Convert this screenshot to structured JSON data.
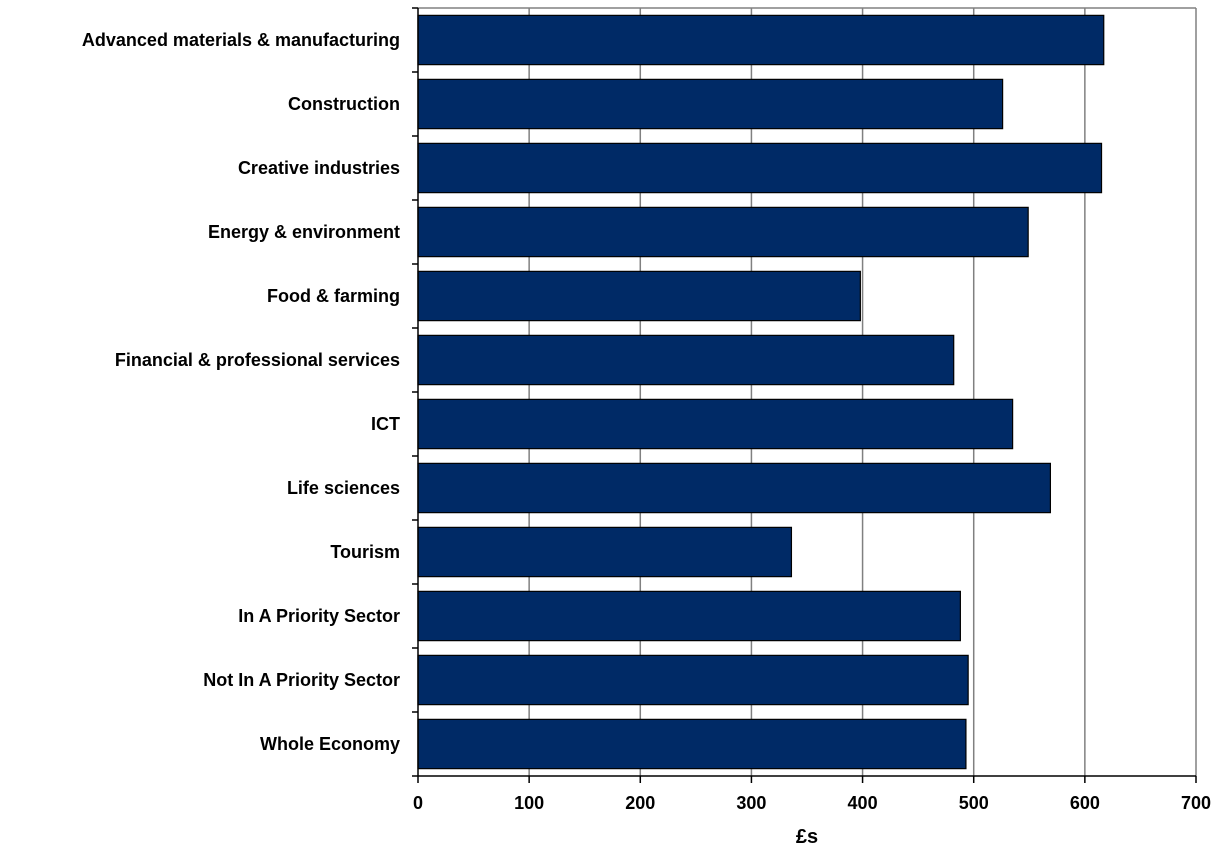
{
  "chart_data": {
    "type": "bar",
    "orientation": "horizontal",
    "categories": [
      "Advanced materials & manufacturing",
      "Construction",
      "Creative industries",
      "Energy & environment",
      "Food & farming",
      "Financial & professional services",
      "ICT",
      "Life sciences",
      "Tourism",
      "In A Priority Sector",
      "Not In A Priority Sector",
      "Whole Economy"
    ],
    "values": [
      617,
      526,
      615,
      549,
      398,
      482,
      535,
      569,
      336,
      488,
      495,
      493
    ],
    "title": "",
    "xlabel": "£s",
    "ylabel": "",
    "xlim": [
      0,
      700
    ],
    "xticks": [
      0,
      100,
      200,
      300,
      400,
      500,
      600,
      700
    ],
    "grid": true,
    "legend": "none",
    "colors": {
      "bar_fill": "#002A66",
      "bar_stroke": "#000000",
      "grid": "#808080",
      "axis": "#000000"
    }
  }
}
